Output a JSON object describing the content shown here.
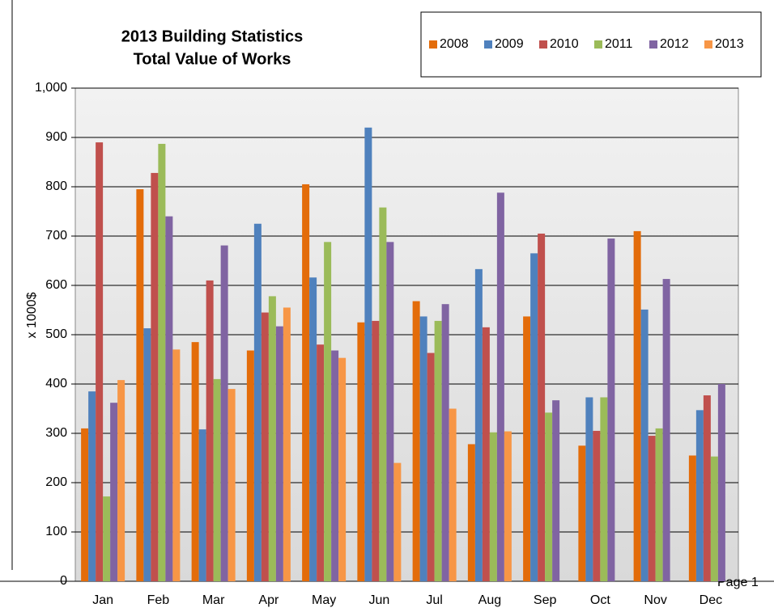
{
  "chart_data": {
    "type": "bar",
    "title": "2013 Building Statistics",
    "subtitle": "Total Value of Works",
    "y_label": "x 1000$",
    "categories": [
      "Jan",
      "Feb",
      "Mar",
      "Apr",
      "May",
      "Jun",
      "Jul",
      "Aug",
      "Sep",
      "Oct",
      "Nov",
      "Dec"
    ],
    "series": [
      {
        "name": "2008",
        "color": "#e36c0a",
        "values": [
          310,
          795,
          485,
          468,
          805,
          525,
          568,
          278,
          537,
          275,
          710,
          255
        ]
      },
      {
        "name": "2009",
        "color": "#4f81bd",
        "values": [
          385,
          513,
          308,
          725,
          616,
          920,
          537,
          633,
          665,
          373,
          551,
          347
        ]
      },
      {
        "name": "2010",
        "color": "#c0504d",
        "values": [
          890,
          828,
          610,
          545,
          480,
          528,
          463,
          515,
          705,
          305,
          295,
          377
        ]
      },
      {
        "name": "2011",
        "color": "#9bbb59",
        "values": [
          172,
          887,
          410,
          578,
          688,
          758,
          528,
          302,
          342,
          373,
          310,
          253
        ]
      },
      {
        "name": "2012",
        "color": "#8064a2",
        "values": [
          362,
          740,
          681,
          517,
          468,
          688,
          562,
          788,
          367,
          695,
          613,
          400
        ]
      },
      {
        "name": "2013",
        "color": "#f79646",
        "values": [
          408,
          470,
          390,
          555,
          453,
          240,
          350,
          304,
          null,
          null,
          null,
          null
        ]
      }
    ],
    "ylim": [
      0,
      1000
    ],
    "yticks": [
      0,
      100,
      200,
      300,
      400,
      500,
      600,
      700,
      800,
      900,
      {
        "value": 1000,
        "label": "1,000"
      }
    ],
    "grid": true
  },
  "footer": {
    "page": "Page 1"
  }
}
